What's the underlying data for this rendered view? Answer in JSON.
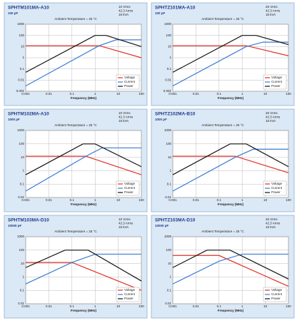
{
  "chart_data": [
    {
      "type": "line",
      "title": "SPHTM101MA-A10",
      "subtitle": "100 pF",
      "specs": [
        "10 Vrms",
        "42.3 Arms",
        "15 kVA"
      ],
      "annotation": "Ambient Temperature = 25 °C",
      "x_label": "Frequency (MHz)",
      "log_x": true,
      "log_y": true,
      "grid": true,
      "legend": "lower right",
      "xlim": [
        0.001,
        100
      ],
      "xticks": [
        0.001,
        0.01,
        0.1,
        1,
        10,
        100
      ],
      "ylim": [
        0.001,
        1000
      ],
      "yticks": [
        0.001,
        0.01,
        0.1,
        1,
        10,
        100,
        1000
      ],
      "series": [
        {
          "name": "Voltage",
          "color": "#e0302a",
          "x": [
            0.001,
            1.5,
            100
          ],
          "values": [
            12,
            12,
            1
          ]
        },
        {
          "name": "Current",
          "color": "#3a7bd5",
          "x": [
            0.001,
            1.5,
            8,
            100
          ],
          "values": [
            0.003,
            12,
            40,
            40
          ]
        },
        {
          "name": "Power",
          "color": "#111111",
          "x": [
            0.001,
            1,
            3,
            100
          ],
          "values": [
            0.05,
            100,
            100,
            10
          ]
        }
      ]
    },
    {
      "type": "line",
      "title": "SPHTZ101MA-A10",
      "subtitle": "100 pF",
      "specs": [
        "25 Vrms",
        "42.3 Arms",
        "15 kVA"
      ],
      "annotation": "Ambient Temperature = 25 °C",
      "x_label": "Frequency (MHz)",
      "log_x": true,
      "log_y": true,
      "grid": true,
      "legend": "lower right",
      "xlim": [
        0.001,
        100
      ],
      "xticks": [
        0.001,
        0.01,
        0.1,
        1,
        10,
        100
      ],
      "ylim": [
        0.001,
        1000
      ],
      "yticks": [
        0.001,
        0.01,
        0.1,
        1,
        10,
        100,
        1000
      ],
      "series": [
        {
          "name": "Voltage",
          "color": "#e0302a",
          "x": [
            0.001,
            1.5,
            100
          ],
          "values": [
            12,
            12,
            1.5
          ]
        },
        {
          "name": "Current",
          "color": "#3a7bd5",
          "x": [
            0.001,
            1.5,
            8,
            100
          ],
          "values": [
            0.003,
            10,
            25,
            25
          ]
        },
        {
          "name": "Power",
          "color": "#111111",
          "x": [
            0.001,
            1,
            4,
            100
          ],
          "values": [
            0.05,
            100,
            100,
            15
          ]
        }
      ]
    },
    {
      "type": "line",
      "title": "SPHTM102MA-A10",
      "subtitle": "1000 pF",
      "specs": [
        "10 Vrms",
        "42.3 Arms",
        "15 kVA"
      ],
      "annotation": "Ambient Temperature = 25 °C",
      "x_label": "Frequency (MHz)",
      "log_x": true,
      "log_y": true,
      "grid": true,
      "legend": "lower right",
      "xlim": [
        0.001,
        100
      ],
      "xticks": [
        0.001,
        0.01,
        0.1,
        1,
        10,
        100
      ],
      "ylim": [
        0.01,
        1000
      ],
      "yticks": [
        0.01,
        0.1,
        1,
        10,
        100,
        1000
      ],
      "series": [
        {
          "name": "Voltage",
          "color": "#e0302a",
          "x": [
            0.001,
            0.4,
            100
          ],
          "values": [
            12,
            12,
            0.5
          ]
        },
        {
          "name": "Current",
          "color": "#3a7bd5",
          "x": [
            0.001,
            0.4,
            2,
            100
          ],
          "values": [
            0.03,
            12,
            50,
            50
          ]
        },
        {
          "name": "Power",
          "color": "#111111",
          "x": [
            0.001,
            0.3,
            1,
            100
          ],
          "values": [
            0.5,
            100,
            100,
            2
          ]
        }
      ]
    },
    {
      "type": "line",
      "title": "SPHTZ102MA-B10",
      "subtitle": "1000 pF",
      "specs": [
        "25 Vrms",
        "42.3 Arms",
        "15 kVA"
      ],
      "annotation": "Ambient Temperature = 25 °C",
      "x_label": "Frequency (MHz)",
      "log_x": true,
      "log_y": true,
      "grid": true,
      "legend": "lower right",
      "xlim": [
        0.001,
        100
      ],
      "xticks": [
        0.001,
        0.01,
        0.1,
        1,
        10,
        100
      ],
      "ylim": [
        0.01,
        1000
      ],
      "yticks": [
        0.01,
        0.1,
        1,
        10,
        100,
        1000
      ],
      "series": [
        {
          "name": "Voltage",
          "color": "#e0302a",
          "x": [
            0.001,
            0.5,
            100
          ],
          "values": [
            12,
            12,
            0.7
          ]
        },
        {
          "name": "Current",
          "color": "#3a7bd5",
          "x": [
            0.001,
            0.5,
            3,
            100
          ],
          "values": [
            0.03,
            10,
            40,
            40
          ]
        },
        {
          "name": "Power",
          "color": "#111111",
          "x": [
            0.001,
            0.3,
            1.5,
            100
          ],
          "values": [
            0.5,
            100,
            100,
            2
          ]
        }
      ]
    },
    {
      "type": "line",
      "title": "SPHTM103MA-D10",
      "subtitle": "10000 pF",
      "specs": [
        "10 Vrms",
        "42.3 Arms",
        "15 kVA"
      ],
      "annotation": "Ambient Temperature = 25 °C",
      "x_label": "Frequency (MHz)",
      "log_x": true,
      "log_y": true,
      "grid": true,
      "legend": "lower right",
      "xlim": [
        0.001,
        100
      ],
      "xticks": [
        0.001,
        0.01,
        0.1,
        1,
        10,
        100
      ],
      "ylim": [
        0.01,
        1000
      ],
      "yticks": [
        0.01,
        0.1,
        1,
        10,
        100,
        1000
      ],
      "series": [
        {
          "name": "Voltage",
          "color": "#e0302a",
          "x": [
            0.001,
            0.1,
            100
          ],
          "values": [
            12,
            12,
            0.1
          ]
        },
        {
          "name": "Current",
          "color": "#3a7bd5",
          "x": [
            0.001,
            0.1,
            1,
            100
          ],
          "values": [
            0.3,
            12,
            50,
            50
          ]
        },
        {
          "name": "Power",
          "color": "#111111",
          "x": [
            0.001,
            0.05,
            0.5,
            100
          ],
          "values": [
            5,
            100,
            100,
            0.5
          ]
        }
      ]
    },
    {
      "type": "line",
      "title": "SPHTZ103MA-D10",
      "subtitle": "10000 pF",
      "specs": [
        "25 Vrms",
        "42.3 Arms",
        "15 kVA"
      ],
      "annotation": "Ambient Temperature = 25 °C",
      "x_label": "Frequency (MHz)",
      "log_x": true,
      "log_y": true,
      "grid": true,
      "legend": "lower right",
      "xlim": [
        0.001,
        100
      ],
      "xticks": [
        0.001,
        0.01,
        0.1,
        1,
        10,
        100
      ],
      "ylim": [
        0.01,
        1000
      ],
      "yticks": [
        0.01,
        0.1,
        1,
        10,
        100,
        1000
      ],
      "series": [
        {
          "name": "Voltage",
          "color": "#e0302a",
          "x": [
            0.001,
            0.1,
            100
          ],
          "values": [
            40,
            40,
            0.2
          ]
        },
        {
          "name": "Current",
          "color": "#3a7bd5",
          "x": [
            0.001,
            0.1,
            1,
            100
          ],
          "values": [
            0.3,
            15,
            50,
            50
          ]
        },
        {
          "name": "Power",
          "color": "#111111",
          "x": [
            0.001,
            0.03,
            0.3,
            100
          ],
          "values": [
            5,
            100,
            100,
            0.7
          ]
        }
      ]
    }
  ]
}
